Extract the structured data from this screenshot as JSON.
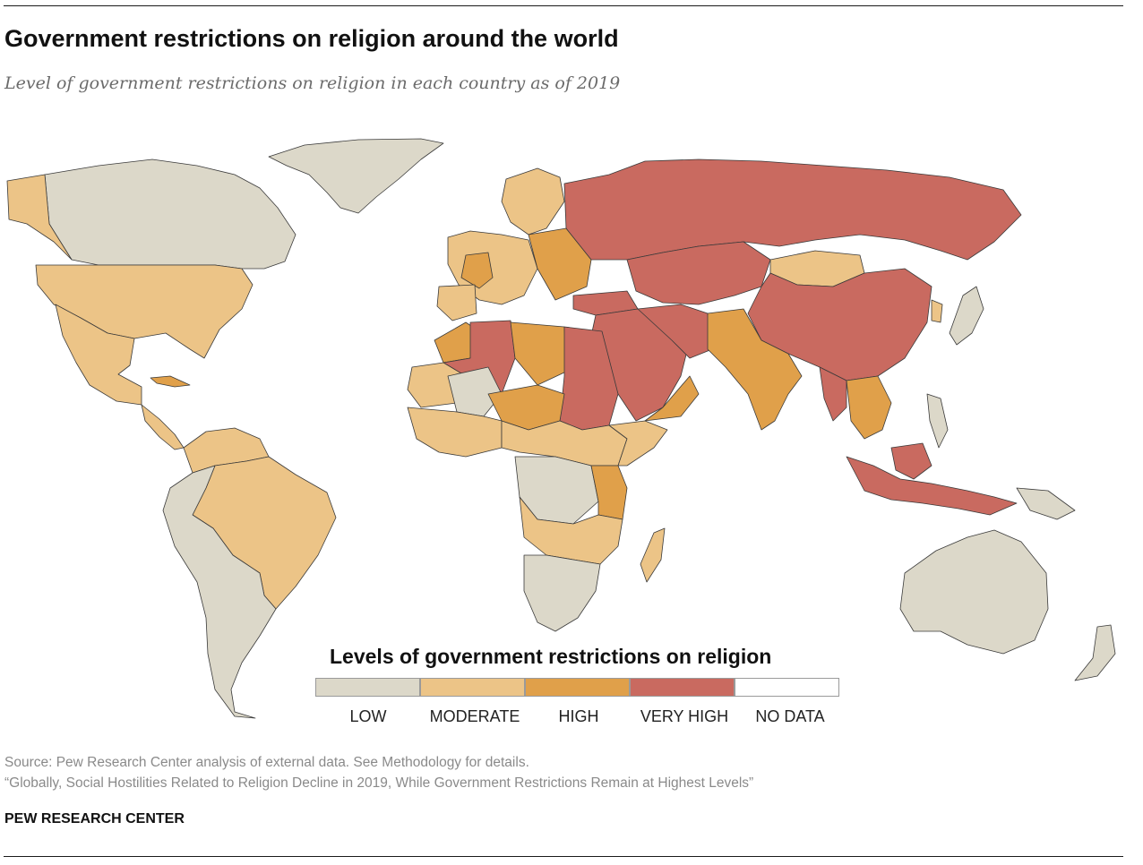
{
  "title": "Government restrictions on religion around the world",
  "subtitle": "Level of government restrictions on religion in each country as of 2019",
  "colors": {
    "low": "#dcd8c9",
    "moderate": "#ecc487",
    "high": "#e0a04a",
    "very_high": "#c96a60",
    "no_data": "#ffffff",
    "border": "#3a3a3a"
  },
  "legend": {
    "title": "Levels of government restrictions on religion",
    "items": [
      {
        "label": "LOW",
        "color": "#dcd8c9"
      },
      {
        "label": "MODERATE",
        "color": "#ecc487"
      },
      {
        "label": "HIGH",
        "color": "#e0a04a"
      },
      {
        "label": "VERY HIGH",
        "color": "#c96a60"
      },
      {
        "label": "NO DATA",
        "color": "#ffffff"
      }
    ]
  },
  "source": {
    "line1": "Source: Pew Research Center analysis of external data. See Methodology for details.",
    "line2": "“Globally, Social Hostilities Related to Religion Decline in 2019, While Government Restrictions Remain at Highest Levels”"
  },
  "organization": "PEW RESEARCH CENTER"
}
